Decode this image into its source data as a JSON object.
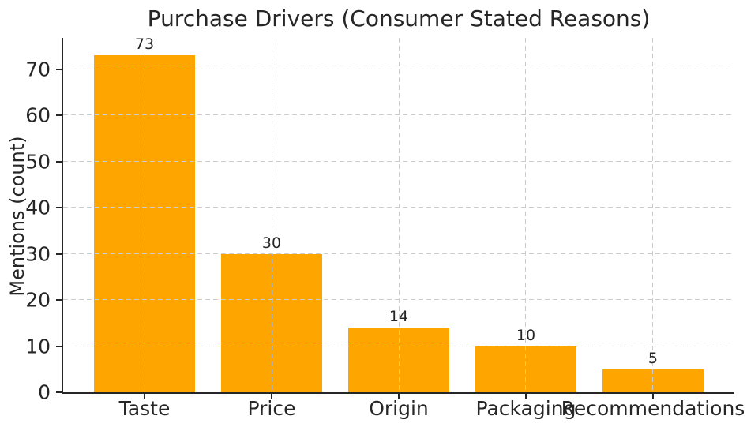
{
  "chart_data": {
    "type": "bar",
    "title": "Purchase Drivers (Consumer Stated Reasons)",
    "ylabel": "Mentions (count)",
    "xlabel": "",
    "categories": [
      "Taste",
      "Price",
      "Origin",
      "Packaging",
      "Recommendations"
    ],
    "values": [
      73,
      30,
      14,
      10,
      5
    ],
    "value_labels": [
      "73",
      "30",
      "14",
      "10",
      "5"
    ],
    "yticks": [
      0,
      10,
      20,
      30,
      40,
      50,
      60,
      70
    ],
    "ylim": [
      0,
      76.8
    ],
    "grid": "dashed, both axes, drawn above bars",
    "legend": "none",
    "colors": {
      "bar": "#FFA500",
      "grid": "#cccccc",
      "spine": "#262626",
      "text": "#262626",
      "background": "#ffffff"
    }
  }
}
